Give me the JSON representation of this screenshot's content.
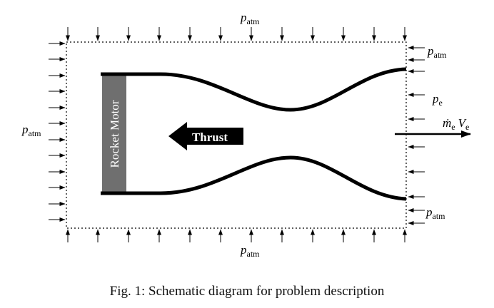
{
  "labels": {
    "p_symbol": "p",
    "atm_sub": "atm",
    "e_sub": "e",
    "mdot_symbol": "ṁ",
    "v_symbol": "V",
    "motor": "Rocket Motor",
    "thrust": "Thrust"
  },
  "caption": "Fig. 1: Schematic diagram for problem description",
  "colors": {
    "motor_fill": "#6f6f6f",
    "nozzle_stroke": "#000000",
    "boundary": "#000000"
  }
}
